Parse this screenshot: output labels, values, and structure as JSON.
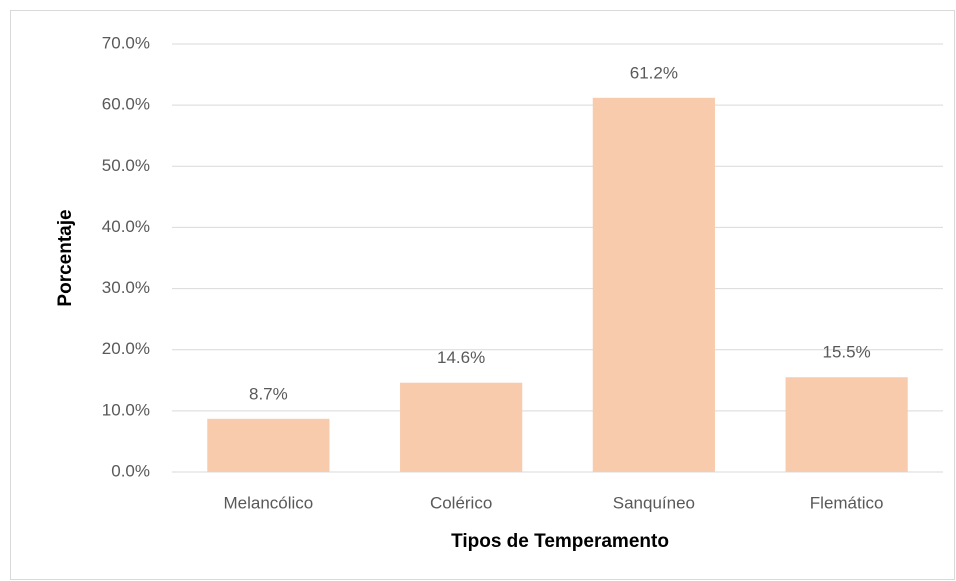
{
  "chart_data": {
    "type": "bar",
    "x_label": "Tipos de Temperamento",
    "y_label": "Porcentaje",
    "categories": [
      "Melancólico",
      "Colérico",
      "Sanquíneo",
      "Flemático"
    ],
    "values": [
      8.7,
      14.6,
      61.2,
      15.5
    ],
    "value_labels": [
      "8.7%",
      "14.6%",
      "61.2%",
      "15.5%"
    ],
    "color": "#f8cbad",
    "ylim": [
      0,
      70
    ],
    "yticks": [
      {
        "value": 0,
        "label": "0.0%"
      },
      {
        "value": 10,
        "label": "10.0%"
      },
      {
        "value": 20,
        "label": "20.0%"
      },
      {
        "value": 30,
        "label": "30.0%"
      },
      {
        "value": 40,
        "label": "40.0%"
      },
      {
        "value": 50,
        "label": "50.0%"
      },
      {
        "value": 60,
        "label": "60.0%"
      },
      {
        "value": 70,
        "label": "70.0%"
      }
    ],
    "grid": true
  }
}
